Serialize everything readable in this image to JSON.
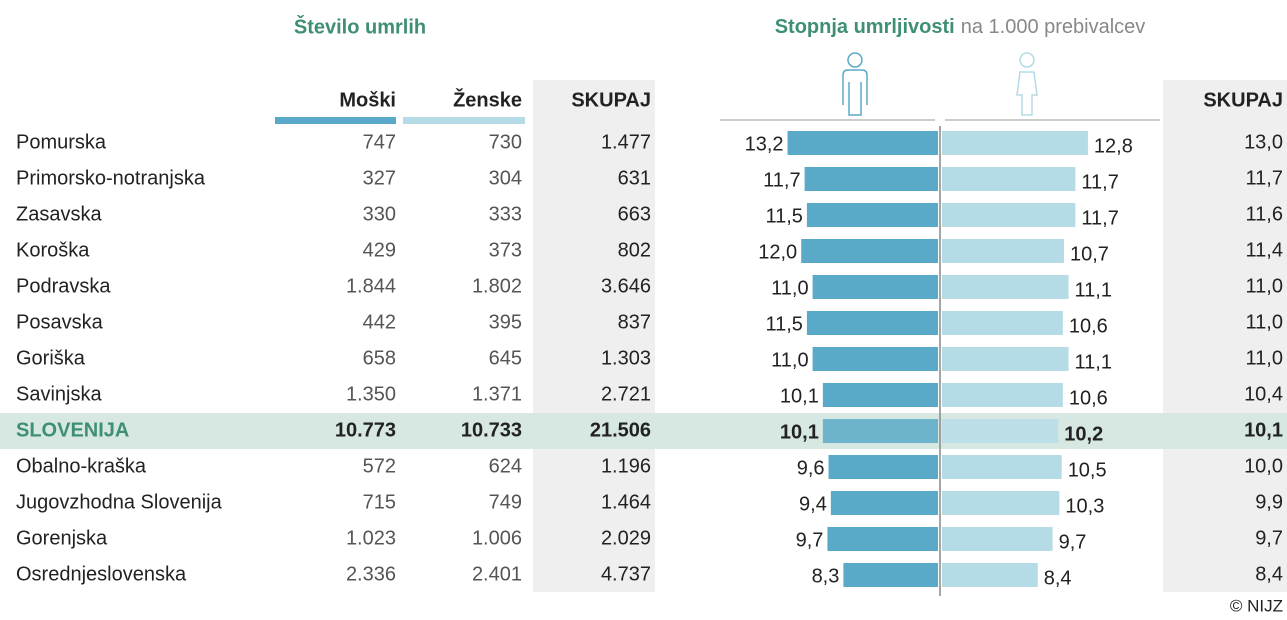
{
  "left_title": "Število umrlih",
  "right_title": "Stopnja umrljivosti",
  "right_subtitle": "na 1.000 prebivalcev",
  "columns": [
    "Moški",
    "Ženske",
    "SKUPAJ"
  ],
  "rate_total_header": "SKUPAJ",
  "male_color": "#5aa9c8",
  "female_color": "#b5dbe6",
  "highlight_row": 8,
  "credit": "© NIJZ",
  "rows": [
    {
      "region": "Pomurska",
      "male": "747",
      "female": "730",
      "total": "1.477",
      "male_rate": 13.2,
      "male_rate_label": "13,2",
      "female_rate": 12.8,
      "female_rate_label": "12,8",
      "total_rate": "13,0"
    },
    {
      "region": "Primorsko-notranjska",
      "male": "327",
      "female": "304",
      "total": "631",
      "male_rate": 11.7,
      "male_rate_label": "11,7",
      "female_rate": 11.7,
      "female_rate_label": "11,7",
      "total_rate": "11,7"
    },
    {
      "region": "Zasavska",
      "male": "330",
      "female": "333",
      "total": "663",
      "male_rate": 11.5,
      "male_rate_label": "11,5",
      "female_rate": 11.7,
      "female_rate_label": "11,7",
      "total_rate": "11,6"
    },
    {
      "region": "Koroška",
      "male": "429",
      "female": "373",
      "total": "802",
      "male_rate": 12.0,
      "male_rate_label": "12,0",
      "female_rate": 10.7,
      "female_rate_label": "10,7",
      "total_rate": "11,4"
    },
    {
      "region": "Podravska",
      "male": "1.844",
      "female": "1.802",
      "total": "3.646",
      "male_rate": 11.0,
      "male_rate_label": "11,0",
      "female_rate": 11.1,
      "female_rate_label": "11,1",
      "total_rate": "11,0"
    },
    {
      "region": "Posavska",
      "male": "442",
      "female": "395",
      "total": "837",
      "male_rate": 11.5,
      "male_rate_label": "11,5",
      "female_rate": 10.6,
      "female_rate_label": "10,6",
      "total_rate": "11,0"
    },
    {
      "region": "Goriška",
      "male": "658",
      "female": "645",
      "total": "1.303",
      "male_rate": 11.0,
      "male_rate_label": "11,0",
      "female_rate": 11.1,
      "female_rate_label": "11,1",
      "total_rate": "11,0"
    },
    {
      "region": "Savinjska",
      "male": "1.350",
      "female": "1.371",
      "total": "2.721",
      "male_rate": 10.1,
      "male_rate_label": "10,1",
      "female_rate": 10.6,
      "female_rate_label": "10,6",
      "total_rate": "10,4"
    },
    {
      "region": "SLOVENIJA",
      "male": "10.773",
      "female": "10.733",
      "total": "21.506",
      "male_rate": 10.1,
      "male_rate_label": "10,1",
      "female_rate": 10.2,
      "female_rate_label": "10,2",
      "total_rate": "10,1"
    },
    {
      "region": "Obalno-kraška",
      "male": "572",
      "female": "624",
      "total": "1.196",
      "male_rate": 9.6,
      "male_rate_label": "9,6",
      "female_rate": 10.5,
      "female_rate_label": "10,5",
      "total_rate": "10,0"
    },
    {
      "region": "Jugovzhodna Slovenija",
      "male": "715",
      "female": "749",
      "total": "1.464",
      "male_rate": 9.4,
      "male_rate_label": "9,4",
      "female_rate": 10.3,
      "female_rate_label": "10,3",
      "total_rate": "9,9"
    },
    {
      "region": "Gorenjska",
      "male": "1.023",
      "female": "1.006",
      "total": "2.029",
      "male_rate": 9.7,
      "male_rate_label": "9,7",
      "female_rate": 9.7,
      "female_rate_label": "9,7",
      "total_rate": "9,7"
    },
    {
      "region": "Osrednjeslovenska",
      "male": "2.336",
      "female": "2.401",
      "total": "4.737",
      "male_rate": 8.3,
      "male_rate_label": "8,3",
      "female_rate": 8.4,
      "female_rate_label": "8,4",
      "total_rate": "8,4"
    }
  ]
}
